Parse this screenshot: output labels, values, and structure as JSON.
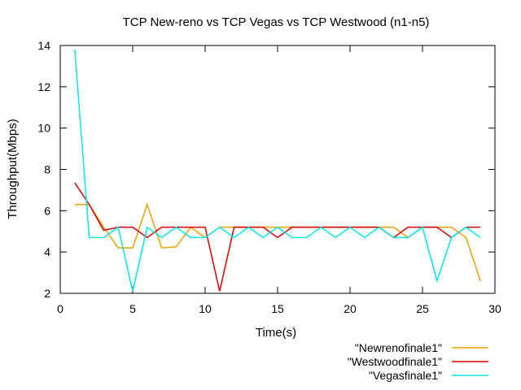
{
  "chart_data": {
    "type": "line",
    "title": "TCP New-reno vs TCP Vegas vs TCP Westwood (n1-n5)",
    "xlabel": "Time(s)",
    "ylabel": "Throughput(Mbps)",
    "xlim": [
      0,
      30
    ],
    "ylim": [
      2,
      14
    ],
    "xticks": [
      0,
      5,
      10,
      15,
      20,
      25,
      30
    ],
    "yticks": [
      2,
      4,
      6,
      8,
      10,
      12,
      14
    ],
    "grid": false,
    "legend_position": "bottom-right, outside plot",
    "series": [
      {
        "name": "\"Newrenofinale1\"",
        "color": "#f0a000",
        "points": [
          [
            1,
            6.3
          ],
          [
            2,
            6.3
          ],
          [
            3,
            5.2
          ],
          [
            4,
            4.2
          ],
          [
            5,
            4.2
          ],
          [
            6,
            6.3
          ],
          [
            7,
            4.2
          ],
          [
            8,
            4.25
          ],
          [
            9,
            5.2
          ],
          [
            10,
            4.7
          ],
          [
            11,
            5.2
          ],
          [
            12,
            5.2
          ],
          [
            13,
            5.2
          ],
          [
            14,
            5.2
          ],
          [
            15,
            5.2
          ],
          [
            16,
            5.2
          ],
          [
            17,
            5.2
          ],
          [
            18,
            5.2
          ],
          [
            19,
            5.2
          ],
          [
            20,
            5.2
          ],
          [
            21,
            5.2
          ],
          [
            22,
            5.2
          ],
          [
            23,
            5.2
          ],
          [
            24,
            4.7
          ],
          [
            25,
            5.2
          ],
          [
            26,
            5.2
          ],
          [
            27,
            5.2
          ],
          [
            28,
            4.7
          ],
          [
            29,
            2.6
          ]
        ]
      },
      {
        "name": "\"Westwoodfinale1\"",
        "color": "#e00000",
        "points": [
          [
            1,
            7.35
          ],
          [
            2,
            6.3
          ],
          [
            3,
            5.05
          ],
          [
            4,
            5.2
          ],
          [
            5,
            5.2
          ],
          [
            6,
            4.7
          ],
          [
            7,
            5.2
          ],
          [
            8,
            5.2
          ],
          [
            9,
            5.2
          ],
          [
            10,
            5.2
          ],
          [
            11,
            2.1
          ],
          [
            12,
            5.2
          ],
          [
            13,
            5.2
          ],
          [
            14,
            5.2
          ],
          [
            15,
            4.7
          ],
          [
            16,
            5.2
          ],
          [
            17,
            5.2
          ],
          [
            18,
            5.2
          ],
          [
            19,
            5.2
          ],
          [
            20,
            5.2
          ],
          [
            21,
            5.2
          ],
          [
            22,
            5.2
          ],
          [
            23,
            4.7
          ],
          [
            24,
            5.2
          ],
          [
            25,
            5.2
          ],
          [
            26,
            5.2
          ],
          [
            27,
            4.7
          ],
          [
            28,
            5.2
          ],
          [
            29,
            5.2
          ]
        ]
      },
      {
        "name": "\"Vegasfinale1\"",
        "color": "#00e8e8",
        "points": [
          [
            1,
            13.8
          ],
          [
            2,
            4.7
          ],
          [
            3,
            4.7
          ],
          [
            4,
            5.2
          ],
          [
            5,
            2.1
          ],
          [
            6,
            5.2
          ],
          [
            7,
            4.7
          ],
          [
            8,
            5.2
          ],
          [
            9,
            4.7
          ],
          [
            10,
            4.7
          ],
          [
            11,
            5.2
          ],
          [
            12,
            4.7
          ],
          [
            13,
            5.2
          ],
          [
            14,
            4.7
          ],
          [
            15,
            5.2
          ],
          [
            16,
            4.7
          ],
          [
            17,
            4.7
          ],
          [
            18,
            5.2
          ],
          [
            19,
            4.7
          ],
          [
            20,
            5.2
          ],
          [
            21,
            4.7
          ],
          [
            22,
            5.2
          ],
          [
            23,
            4.7
          ],
          [
            24,
            4.7
          ],
          [
            25,
            5.2
          ],
          [
            26,
            2.6
          ],
          [
            27,
            4.7
          ],
          [
            28,
            5.2
          ],
          [
            29,
            4.7
          ]
        ]
      }
    ]
  }
}
